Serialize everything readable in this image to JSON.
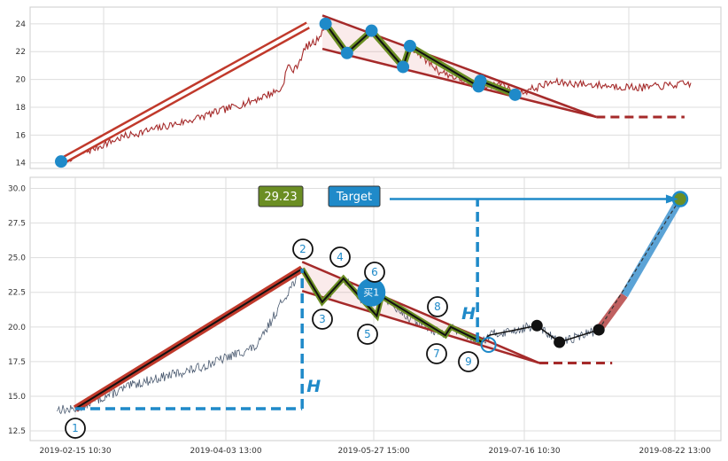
{
  "chart_data": [
    {
      "type": "line",
      "panel": "top",
      "ylim": [
        13.6,
        25.2
      ],
      "yticks": [
        14,
        16,
        18,
        20,
        22,
        24
      ],
      "grid": true,
      "series_color": "#a52a2a",
      "markers": [
        {
          "t": 0.0,
          "y": 14.1
        },
        {
          "t": 0.42,
          "y": 24.0
        },
        {
          "t": 0.454,
          "y": 21.9
        },
        {
          "t": 0.493,
          "y": 23.5
        },
        {
          "t": 0.543,
          "y": 20.9
        },
        {
          "t": 0.554,
          "y": 22.4
        },
        {
          "t": 0.663,
          "y": 19.5
        },
        {
          "t": 0.666,
          "y": 19.9
        },
        {
          "t": 0.721,
          "y": 18.9
        }
      ],
      "trend_lines": {
        "rise": [
          {
            "t": 0.0,
            "y": 14.1
          },
          {
            "t": 0.392,
            "y": 23.9
          }
        ],
        "upper": [
          {
            "t": 0.415,
            "y": 24.6
          },
          {
            "t": 0.85,
            "y": 17.3
          }
        ],
        "lower": [
          {
            "t": 0.415,
            "y": 22.2
          },
          {
            "t": 0.85,
            "y": 17.3
          }
        ],
        "target_dashed": [
          {
            "t": 0.85,
            "y": 17.3
          },
          {
            "t": 0.99,
            "y": 17.3
          }
        ]
      }
    },
    {
      "type": "line",
      "panel": "bottom",
      "ylim": [
        11.8,
        30.8
      ],
      "yticks": [
        "12.5",
        "15.0",
        "17.5",
        "20.0",
        "22.5",
        "25.0",
        "27.5",
        "30.0"
      ],
      "xticks": [
        "2019-02-15 10:30",
        "2019-04-03 13:00",
        "2019-05-27 15:00",
        "2019-07-16 10:30",
        "2019-08-22 13:00"
      ],
      "grid": true,
      "series_color": "#4a5a70",
      "price_badge": {
        "text": "29.23",
        "color": "#6b8e23"
      },
      "target_badge": {
        "text": "Target",
        "color": "#1f8ac9"
      },
      "h_label": "H",
      "buy_label": "买1",
      "pivots": [
        {
          "label": "1",
          "t": 0.0,
          "y": 14.1
        },
        {
          "label": "2",
          "t": 0.374,
          "y": 24.2
        },
        {
          "label": "3",
          "t": 0.407,
          "y": 21.8
        },
        {
          "label": "4",
          "t": 0.442,
          "y": 23.5
        },
        {
          "label": "5",
          "t": 0.497,
          "y": 20.8
        },
        {
          "label": "6",
          "t": 0.505,
          "y": 22.2
        },
        {
          "label": "7",
          "t": 0.61,
          "y": 19.4
        },
        {
          "label": "8",
          "t": 0.619,
          "y": 20.0
        },
        {
          "label": "9",
          "t": 0.671,
          "y": 18.9
        }
      ],
      "post_points": [
        {
          "t": 0.682,
          "y": 19.4
        },
        {
          "t": 0.761,
          "y": 20.1
        },
        {
          "t": 0.798,
          "y": 18.9
        },
        {
          "t": 0.863,
          "y": 19.8
        }
      ],
      "target_point": {
        "t": 0.997,
        "y": 29.23
      }
    }
  ]
}
